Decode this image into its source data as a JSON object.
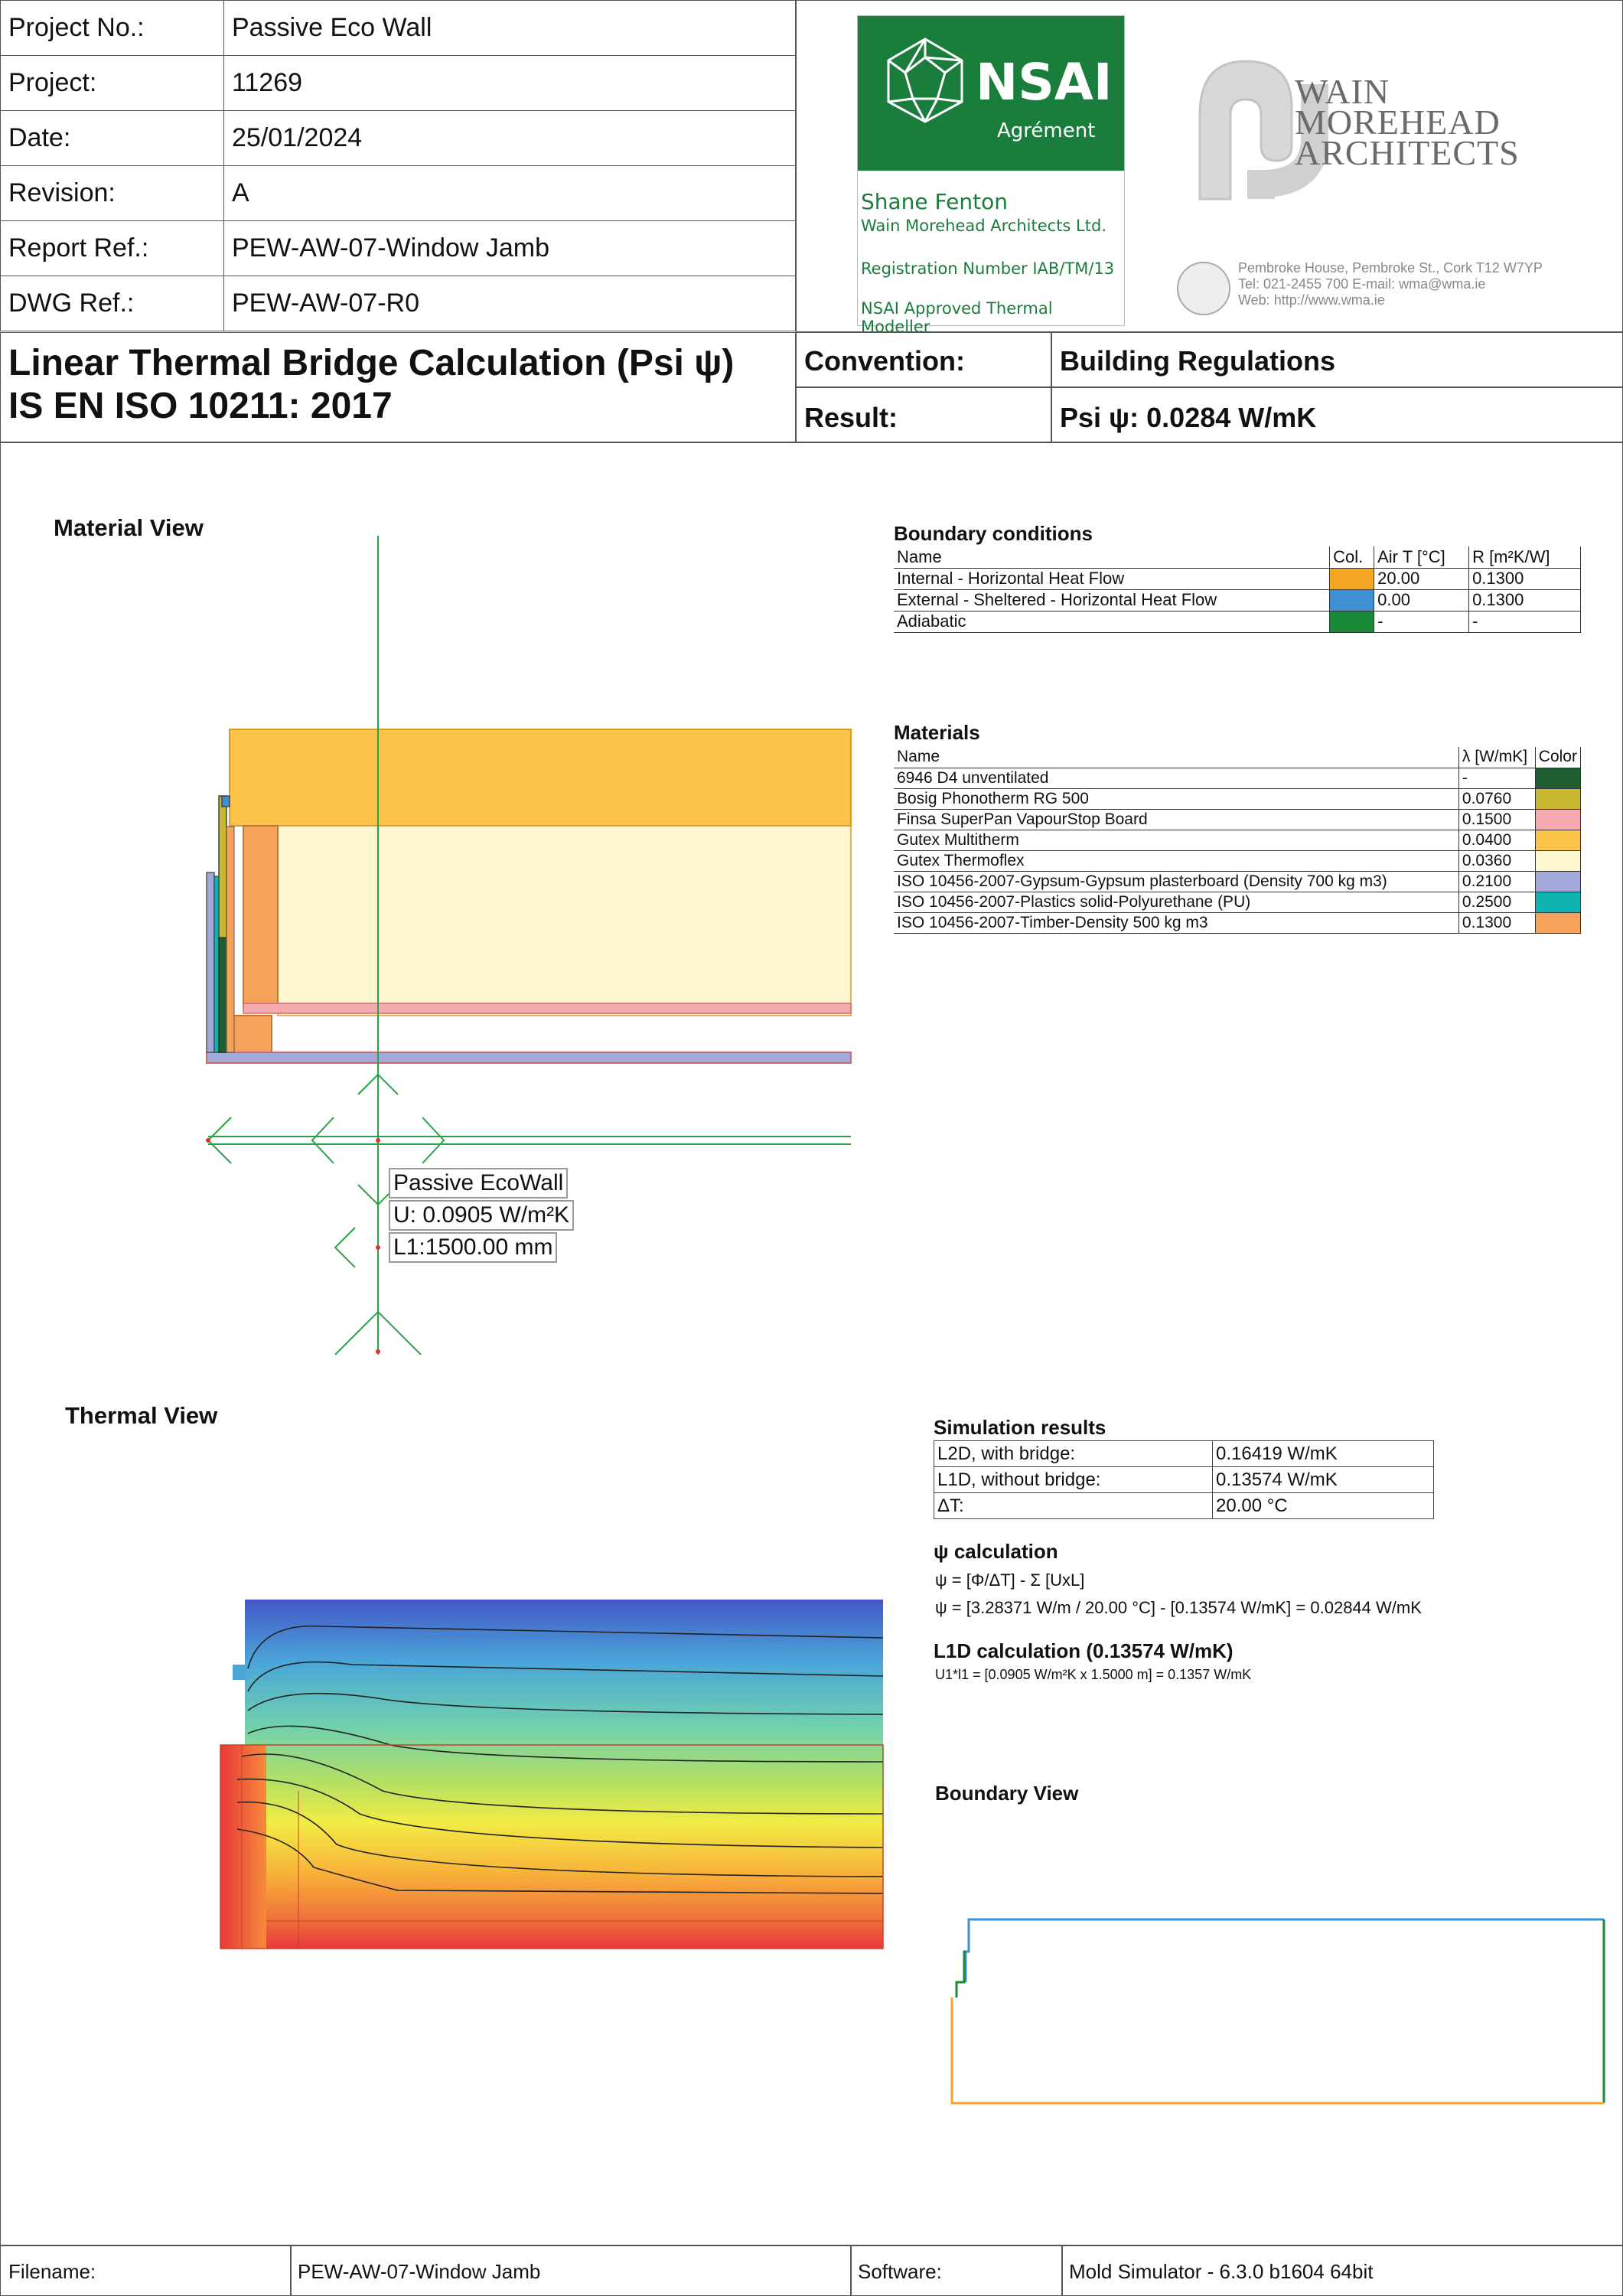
{
  "header": {
    "rows": [
      {
        "label": "Project No.:",
        "value": "Passive Eco Wall"
      },
      {
        "label": "Project:",
        "value": "11269"
      },
      {
        "label": "Date:",
        "value": "25/01/2024"
      },
      {
        "label": "Revision:",
        "value": "A"
      },
      {
        "label": "Report Ref.:",
        "value": "PEW-AW-07-Window Jamb"
      },
      {
        "label": "DWG Ref.:",
        "value": "PEW-AW-07-R0"
      }
    ]
  },
  "nsai": {
    "brand": "NSAI",
    "subtitle": "Agrément",
    "name": "Shane Fenton",
    "company": "Wain Morehead Architects Ltd.",
    "registration": "Registration Number IAB/TM/13",
    "approved": "NSAI Approved Thermal Modeller"
  },
  "wma": {
    "line1": "WAIN",
    "line2": "MOREHEAD",
    "line3": "ARCHITECTS",
    "address": "Pembroke House, Pembroke St., Cork T12 W7YP",
    "contact": "Tel: 021-2455 700 E-mail: wma@wma.ie",
    "web": "Web: http://www.wma.ie"
  },
  "title": {
    "line1": "Linear Thermal Bridge Calculation (Psi ψ)",
    "line2": "IS EN ISO 10211: 2017",
    "convention_label": "Convention:",
    "convention_value": "Building Regulations",
    "result_label": "Result:",
    "result_value": "Psi ψ: 0.0284 W/mK"
  },
  "material_view": {
    "title": "Material View",
    "label_name": "Passive EcoWall",
    "label_u": "U: 0.0905 W/m²K",
    "label_l": "L1:1500.00 mm"
  },
  "boundary_conditions": {
    "title": "Boundary conditions",
    "headers": [
      "Name",
      "Col.",
      "Air T [°C]",
      "R [m²K/W]"
    ],
    "rows": [
      {
        "name": "Internal - Horizontal Heat Flow",
        "color": "#f5a623",
        "air_t": "20.00",
        "r": "0.1300"
      },
      {
        "name": "External - Sheltered - Horizontal Heat Flow",
        "color": "#3f8fd2",
        "air_t": "0.00",
        "r": "0.1300"
      },
      {
        "name": "Adiabatic",
        "color": "#1a8a3a",
        "air_t": "-",
        "r": "-"
      }
    ]
  },
  "materials": {
    "title": "Materials",
    "headers": [
      "Name",
      "λ [W/mK]",
      "Color"
    ],
    "rows": [
      {
        "name": "6946 D4 unventilated",
        "lambda": "-",
        "color": "#1d5e33"
      },
      {
        "name": "Bosig Phonotherm RG 500",
        "lambda": "0.0760",
        "color": "#c8b62d"
      },
      {
        "name": "Finsa SuperPan VapourStop Board",
        "lambda": "0.1500",
        "color": "#f5aab0"
      },
      {
        "name": "Gutex Multitherm",
        "lambda": "0.0400",
        "color": "#fcc34a"
      },
      {
        "name": "Gutex Thermoflex",
        "lambda": "0.0360",
        "color": "#fdf6cf"
      },
      {
        "name": "ISO 10456-2007-Gypsum-Gypsum plasterboard (Density 700 kg m3)",
        "lambda": "0.2100",
        "color": "#a2a8d8"
      },
      {
        "name": "ISO 10456-2007-Plastics solid-Polyurethane (PU)",
        "lambda": "0.2500",
        "color": "#11b3b0"
      },
      {
        "name": "ISO 10456-2007-Timber-Density 500 kg m3",
        "lambda": "0.1300",
        "color": "#f5a25a"
      }
    ]
  },
  "thermal_view": {
    "title": "Thermal View"
  },
  "simulation": {
    "title": "Simulation results",
    "rows": [
      {
        "label": "L2D, with bridge:",
        "value": "0.16419 W/mK"
      },
      {
        "label": "L1D, without bridge:",
        "value": "0.13574 W/mK"
      },
      {
        "label": "ΔT:",
        "value": "20.00 °C"
      }
    ]
  },
  "psi_calc": {
    "title": "ψ calculation",
    "formula": "ψ = [Φ/ΔT] - Σ [UxL]",
    "computed": "ψ = [3.28371 W/m / 20.00 °C] - [0.13574 W/mK] = 0.02844 W/mK"
  },
  "l1d_calc": {
    "title": "L1D calculation  (0.13574 W/mK)",
    "formula": "U1*l1 = [0.0905 W/m²K x 1.5000 m] = 0.1357 W/mK"
  },
  "boundary_view": {
    "title": "Boundary View"
  },
  "footer": {
    "filename_label": "Filename:",
    "filename_value": "PEW-AW-07-Window Jamb",
    "software_label": "Software:",
    "software_value": "Mold Simulator - 6.3.0 b1604 64bit"
  }
}
